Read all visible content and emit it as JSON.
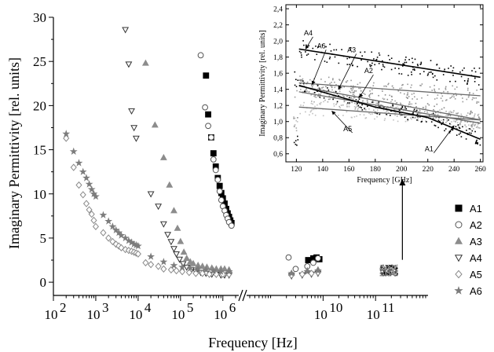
{
  "chart_data": [
    {
      "type": "scatter",
      "title": "",
      "xlabel": "Frequency [Hz]",
      "ylabel": "Imaginary Permittivity [rel. units]",
      "x_scale": "log",
      "x_axis_broken": true,
      "xlim": [
        100,
        2000000
      ],
      "xlim_after_break": [
        400000000,
        1000000000000
      ],
      "ylim": [
        -1.5,
        30
      ],
      "x_tick_labels": [
        "10",
        "10",
        "10",
        "10",
        "10",
        "10",
        "10",
        "10"
      ],
      "x_tick_exponents": [
        "2",
        "3",
        "4",
        "5",
        "6",
        "10",
        "11",
        ""
      ],
      "y_ticks": [
        0,
        5,
        10,
        15,
        20,
        25,
        30
      ],
      "y_tick_labels": [
        "0",
        "5",
        "10",
        "15",
        "20",
        "25",
        "30"
      ],
      "legend_position": "right",
      "colors": {
        "black": "#000000",
        "gray": "#8c8c8c",
        "light": "#b4b4b4",
        "star": "#7c7c7c"
      },
      "series": [
        {
          "name": "A1",
          "marker": "filled-square",
          "points": [
            [
              400000,
              23.4
            ],
            [
              450000,
              19
            ],
            [
              530000,
              16.4
            ],
            [
              600000,
              14.6
            ],
            [
              680000,
              13.1
            ],
            [
              760000,
              11.8
            ],
            [
              840000,
              10.9
            ],
            [
              920000,
              10.1
            ],
            [
              1000000,
              9.5
            ],
            [
              1100000,
              8.9
            ],
            [
              1200000,
              8.3
            ],
            [
              1300000,
              7.8
            ],
            [
              1400000,
              7.4
            ],
            [
              1500000,
              7.0
            ],
            [
              1600000,
              6.7
            ]
          ],
          "after_break": [
            [
              5200000000,
              2.5
            ],
            [
              6500000000,
              2.7
            ],
            [
              7500000000,
              2.8
            ],
            [
              8500000000,
              2.6
            ]
          ]
        },
        {
          "name": "A2",
          "marker": "open-circle",
          "points": [
            [
              300000,
              25.7
            ],
            [
              380000,
              19.8
            ],
            [
              450000,
              17.7
            ],
            [
              530000,
              16.4
            ],
            [
              600000,
              13.9
            ],
            [
              680000,
              12.7
            ],
            [
              760000,
              11.6
            ],
            [
              840000,
              10.3
            ],
            [
              920000,
              9.3
            ],
            [
              1000000,
              8.6
            ],
            [
              1100000,
              8.1
            ],
            [
              1200000,
              7.6
            ],
            [
              1300000,
              7.2
            ],
            [
              1400000,
              6.8
            ],
            [
              1600000,
              6.4
            ]
          ],
          "after_break": [
            [
              2200000000,
              2.8
            ],
            [
              3000000000,
              1.5
            ],
            [
              5000000000,
              1.8
            ],
            [
              6500000000,
              2.2
            ],
            [
              8000000000,
              2.7
            ]
          ]
        },
        {
          "name": "A3",
          "marker": "filled-triangle",
          "points": [
            [
              15000,
              24.8
            ],
            [
              25000,
              17.8
            ],
            [
              40000,
              14.1
            ],
            [
              55000,
              11.0
            ],
            [
              70000,
              8.1
            ],
            [
              85000,
              6.1
            ],
            [
              100000,
              4.6
            ],
            [
              120000,
              3.4
            ],
            [
              140000,
              2.7
            ],
            [
              170000,
              2.3
            ],
            [
              200000,
              2.1
            ],
            [
              260000,
              1.9
            ],
            [
              330000,
              1.8
            ],
            [
              420000,
              1.7
            ],
            [
              550000,
              1.6
            ],
            [
              700000,
              1.5
            ],
            [
              900000,
              1.5
            ],
            [
              1100000,
              1.5
            ],
            [
              1400000,
              1.4
            ]
          ],
          "after_break": [
            [
              2500000000,
              1.0
            ],
            [
              5000000000,
              1.3
            ],
            [
              8000000000,
              1.4
            ]
          ]
        },
        {
          "name": "A4",
          "marker": "open-triangle-down",
          "points": [
            [
              5000,
              28.6
            ],
            [
              6000,
              24.7
            ],
            [
              7000,
              19.4
            ],
            [
              8000,
              17.5
            ],
            [
              9000,
              16.3
            ],
            [
              20000,
              10.0
            ],
            [
              30000,
              8.6
            ],
            [
              40000,
              6.6
            ],
            [
              50000,
              5.4
            ],
            [
              60000,
              4.6
            ],
            [
              70000,
              3.8
            ],
            [
              80000,
              3.2
            ],
            [
              95000,
              2.6
            ],
            [
              115000,
              2.1
            ],
            [
              140000,
              1.7
            ],
            [
              180000,
              1.4
            ],
            [
              230000,
              1.2
            ],
            [
              300000,
              1.1
            ],
            [
              400000,
              1.0
            ],
            [
              550000,
              0.9
            ],
            [
              700000,
              0.9
            ],
            [
              900000,
              0.8
            ],
            [
              1100000,
              0.8
            ],
            [
              1400000,
              0.8
            ]
          ],
          "after_break": [
            [
              2500000000,
              0.7
            ],
            [
              4000000000,
              0.8
            ],
            [
              6000000000,
              0.9
            ],
            [
              8000000000,
              1.0
            ]
          ]
        },
        {
          "name": "A5",
          "marker": "open-diamond",
          "points": [
            [
              200,
              16.3
            ],
            [
              300,
              13.0
            ],
            [
              400,
              11.0
            ],
            [
              500,
              9.9
            ],
            [
              600,
              8.9
            ],
            [
              700,
              8.2
            ],
            [
              800,
              7.7
            ],
            [
              900,
              7.0
            ],
            [
              1000,
              6.3
            ],
            [
              1500,
              5.6
            ],
            [
              2000,
              5.0
            ],
            [
              2500,
              4.6
            ],
            [
              3000,
              4.3
            ],
            [
              3500,
              4.1
            ],
            [
              4000,
              3.9
            ],
            [
              5000,
              3.7
            ],
            [
              6000,
              3.6
            ],
            [
              7000,
              3.5
            ],
            [
              8000,
              3.4
            ],
            [
              9000,
              3.3
            ],
            [
              10000,
              3.2
            ],
            [
              15000,
              2.2
            ],
            [
              20000,
              2.0
            ],
            [
              30000,
              1.8
            ],
            [
              40000,
              1.5
            ],
            [
              60000,
              1.4
            ],
            [
              80000,
              1.3
            ],
            [
              110000,
              1.2
            ],
            [
              160000,
              1.1
            ],
            [
              230000,
              1.0
            ],
            [
              330000,
              1.0
            ],
            [
              480000,
              0.9
            ],
            [
              700000,
              0.9
            ],
            [
              1000000,
              0.9
            ],
            [
              1400000,
              0.9
            ]
          ],
          "after_break": [
            [
              2500000000,
              0.8
            ],
            [
              4000000000,
              0.9
            ],
            [
              6000000000,
              1.0
            ],
            [
              8000000000,
              1.1
            ]
          ]
        },
        {
          "name": "A6",
          "marker": "star",
          "points": [
            [
              200,
              16.8
            ],
            [
              300,
              14.8
            ],
            [
              400,
              13.5
            ],
            [
              500,
              12.5
            ],
            [
              600,
              11.8
            ],
            [
              700,
              11.1
            ],
            [
              800,
              10.5
            ],
            [
              900,
              10.0
            ],
            [
              1000,
              9.7
            ],
            [
              1500,
              7.6
            ],
            [
              2000,
              6.9
            ],
            [
              2500,
              6.3
            ],
            [
              3000,
              5.9
            ],
            [
              3500,
              5.6
            ],
            [
              4000,
              5.3
            ],
            [
              5000,
              5.0
            ],
            [
              6000,
              4.7
            ],
            [
              7000,
              4.5
            ],
            [
              8000,
              4.3
            ],
            [
              9000,
              4.2
            ],
            [
              10000,
              4.1
            ],
            [
              20000,
              2.9
            ],
            [
              40000,
              2.3
            ],
            [
              70000,
              1.9
            ],
            [
              110000,
              1.7
            ],
            [
              170000,
              1.6
            ],
            [
              260000,
              1.5
            ],
            [
              400000,
              1.4
            ],
            [
              600000,
              1.3
            ],
            [
              900000,
              1.2
            ],
            [
              1400000,
              1.2
            ]
          ],
          "after_break": [
            [
              2500000000,
              1.0
            ],
            [
              5000000000,
              1.2
            ],
            [
              8000000000,
              1.3
            ]
          ]
        }
      ],
      "high_frequency_cluster": {
        "x_range": [
          120000000000,
          260000000000
        ],
        "y_range": [
          0.8,
          2.0
        ]
      }
    },
    {
      "type": "scatter",
      "title": "",
      "xlabel": "Frequency [GHz]",
      "ylabel": "Imaginary Permittivity [rel. units]",
      "xlim": [
        112,
        262
      ],
      "ylim": [
        0.5,
        2.45
      ],
      "x_ticks": [
        120,
        140,
        160,
        180,
        200,
        220,
        240,
        260
      ],
      "x_tick_labels": [
        "120",
        "140",
        "160",
        "180",
        "200",
        "220",
        "240",
        "260"
      ],
      "y_ticks": [
        0.6,
        0.8,
        1.0,
        1.2,
        1.4,
        1.6,
        1.8,
        2.0,
        2.2,
        2.4
      ],
      "y_tick_labels": [
        "0,6",
        "0,8",
        "1,0",
        "1,2",
        "1,4",
        "1,6",
        "1,8",
        "2,0",
        "2,2",
        "2,4"
      ],
      "series": [
        {
          "name": "A4",
          "fit_line": [
            [
              122,
              1.9
            ],
            [
              260,
              1.55
            ]
          ],
          "color": "#000000",
          "scatter_spread": 0.12
        },
        {
          "name": "A6",
          "fit_line": [
            [
              122,
              1.48
            ],
            [
              260,
              1.32
            ]
          ],
          "color": "#9a9a9a",
          "scatter_spread": 0.1
        },
        {
          "name": "A3",
          "fit_line": [
            [
              122,
              1.44
            ],
            [
              260,
              1.02
            ]
          ],
          "color": "#8a8a8a",
          "scatter_spread": 0.1
        },
        {
          "name": "A2",
          "fit_line": [
            [
              122,
              1.37
            ],
            [
              260,
              0.98
            ]
          ],
          "color": "#aaaaaa",
          "scatter_spread": 0.1
        },
        {
          "name": "A5",
          "fit_line": [
            [
              122,
              1.18
            ],
            [
              260,
              1.02
            ]
          ],
          "color": "#c0c0c0",
          "scatter_spread": 0.09
        },
        {
          "name": "A1",
          "fit_line": [
            [
              122,
              1.45
            ],
            [
              180,
              1.18
            ],
            [
              220,
              1.05
            ],
            [
              260,
              0.78
            ]
          ],
          "color": "#000000",
          "scatter_spread": 0.08
        }
      ],
      "annotations": [
        {
          "text": "A4",
          "at": [
            129,
            2.07
          ],
          "points_to": [
            127,
            1.9
          ]
        },
        {
          "text": "A6",
          "at": [
            139,
            1.91
          ],
          "points_to": [
            132,
            1.46
          ]
        },
        {
          "text": "A3",
          "at": [
            162,
            1.86
          ],
          "points_to": [
            152,
            1.4
          ]
        },
        {
          "text": "A2",
          "at": [
            175,
            1.6
          ],
          "points_to": [
            168,
            1.3
          ]
        },
        {
          "text": "A5",
          "at": [
            159,
            0.88
          ],
          "points_to": [
            147,
            1.13
          ]
        },
        {
          "text": "A1",
          "at": [
            221,
            0.63
          ],
          "points_to": [
            240,
            0.95
          ]
        }
      ]
    }
  ]
}
